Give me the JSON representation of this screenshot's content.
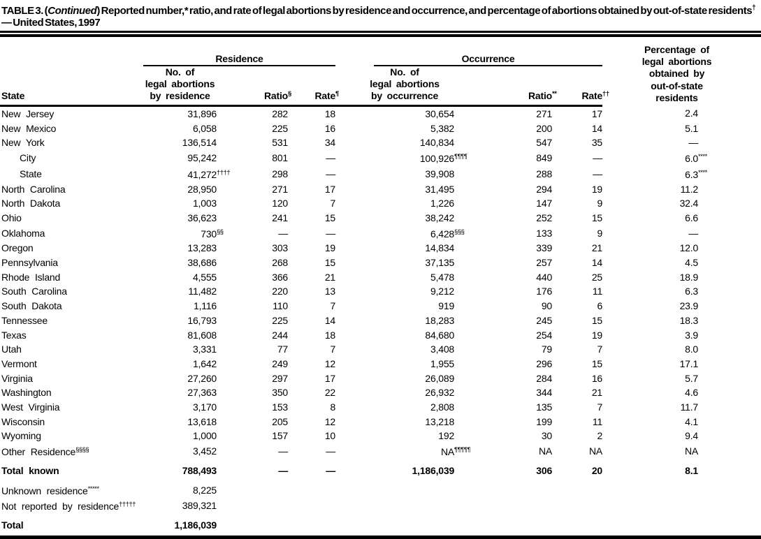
{
  "title": {
    "part1": "TABLE 3. (",
    "continued": "Continued",
    "part2": ") Reported number,* ratio, and rate of legal abortions by residence and occurrence, and percentage of abortions obtained by out-of-state residents",
    "dagger": "†",
    "part3": " — United States, 1997"
  },
  "header": {
    "state": "State",
    "residence_group": "Residence",
    "occurrence_group": "Occurrence",
    "res_no_line1": "No. of",
    "res_no_line2": "legal abortions",
    "res_no_line3": "by residence",
    "res_ratio": "Ratio",
    "res_ratio_sup": "§",
    "res_rate": "Rate",
    "res_rate_sup": "¶",
    "occ_no_line1": "No. of",
    "occ_no_line2": "legal abortions",
    "occ_no_line3": "by occurrence",
    "occ_ratio": "Ratio",
    "occ_ratio_sup": "**",
    "occ_rate": "Rate",
    "occ_rate_sup": "††",
    "pct_line1": "Percentage of",
    "pct_line2": "legal abortions",
    "pct_line3": "obtained by",
    "pct_line4": "out-of-state",
    "pct_line5": "residents"
  },
  "rows": [
    {
      "state": "New Jersey",
      "res_no": "31,896",
      "res_ratio": "282",
      "res_rate": "18",
      "occ_no": "30,654",
      "occ_ratio": "271",
      "occ_rate": "17",
      "pct": "2.4"
    },
    {
      "state": "New Mexico",
      "res_no": "6,058",
      "res_ratio": "225",
      "res_rate": "16",
      "occ_no": "5,382",
      "occ_ratio": "200",
      "occ_rate": "14",
      "pct": "5.1"
    },
    {
      "state": "New York",
      "res_no": "136,514",
      "res_ratio": "531",
      "res_rate": "34",
      "occ_no": "140,834",
      "occ_ratio": "547",
      "occ_rate": "35",
      "pct": "—"
    },
    {
      "state": "City",
      "indent": true,
      "res_no": "95,242",
      "res_ratio": "801",
      "res_rate": "—",
      "occ_no": "100,926",
      "occ_no_sup": "¶¶¶¶",
      "occ_ratio": "849",
      "occ_rate": "—",
      "pct": "6.0",
      "pct_sup": "****"
    },
    {
      "state": "State",
      "indent": true,
      "res_no": "41,272",
      "res_no_sup": "††††",
      "res_ratio": "298",
      "res_rate": "—",
      "occ_no": "39,908",
      "occ_ratio": "288",
      "occ_rate": "—",
      "pct": "6.3",
      "pct_sup": "****"
    },
    {
      "state": "North Carolina",
      "res_no": "28,950",
      "res_ratio": "271",
      "res_rate": "17",
      "occ_no": "31,495",
      "occ_ratio": "294",
      "occ_rate": "19",
      "pct": "11.2"
    },
    {
      "state": "North Dakota",
      "res_no": "1,003",
      "res_ratio": "120",
      "res_rate": "7",
      "occ_no": "1,226",
      "occ_ratio": "147",
      "occ_rate": "9",
      "pct": "32.4"
    },
    {
      "state": "Ohio",
      "res_no": "36,623",
      "res_ratio": "241",
      "res_rate": "15",
      "occ_no": "38,242",
      "occ_ratio": "252",
      "occ_rate": "15",
      "pct": "6.6"
    },
    {
      "state": "Oklahoma",
      "res_no": "730",
      "res_no_sup": "§§",
      "res_ratio": "—",
      "res_rate": "—",
      "occ_no": "6,428",
      "occ_no_sup": "§§§",
      "occ_ratio": "133",
      "occ_rate": "9",
      "pct": "—"
    },
    {
      "state": "Oregon",
      "res_no": "13,283",
      "res_ratio": "303",
      "res_rate": "19",
      "occ_no": "14,834",
      "occ_ratio": "339",
      "occ_rate": "21",
      "pct": "12.0"
    },
    {
      "state": "Pennsylvania",
      "res_no": "38,686",
      "res_ratio": "268",
      "res_rate": "15",
      "occ_no": "37,135",
      "occ_ratio": "257",
      "occ_rate": "14",
      "pct": "4.5"
    },
    {
      "state": "Rhode Island",
      "res_no": "4,555",
      "res_ratio": "366",
      "res_rate": "21",
      "occ_no": "5,478",
      "occ_ratio": "440",
      "occ_rate": "25",
      "pct": "18.9"
    },
    {
      "state": "South Carolina",
      "res_no": "11,482",
      "res_ratio": "220",
      "res_rate": "13",
      "occ_no": "9,212",
      "occ_ratio": "176",
      "occ_rate": "11",
      "pct": "6.3"
    },
    {
      "state": "South Dakota",
      "res_no": "1,116",
      "res_ratio": "110",
      "res_rate": "7",
      "occ_no": "919",
      "occ_ratio": "90",
      "occ_rate": "6",
      "pct": "23.9"
    },
    {
      "state": "Tennessee",
      "res_no": "16,793",
      "res_ratio": "225",
      "res_rate": "14",
      "occ_no": "18,283",
      "occ_ratio": "245",
      "occ_rate": "15",
      "pct": "18.3"
    },
    {
      "state": "Texas",
      "res_no": "81,608",
      "res_ratio": "244",
      "res_rate": "18",
      "occ_no": "84,680",
      "occ_ratio": "254",
      "occ_rate": "19",
      "pct": "3.9"
    },
    {
      "state": "Utah",
      "res_no": "3,331",
      "res_ratio": "77",
      "res_rate": "7",
      "occ_no": "3,408",
      "occ_ratio": "79",
      "occ_rate": "7",
      "pct": "8.0"
    },
    {
      "state": "Vermont",
      "res_no": "1,642",
      "res_ratio": "249",
      "res_rate": "12",
      "occ_no": "1,955",
      "occ_ratio": "296",
      "occ_rate": "15",
      "pct": "17.1"
    },
    {
      "state": "Virginia",
      "res_no": "27,260",
      "res_ratio": "297",
      "res_rate": "17",
      "occ_no": "26,089",
      "occ_ratio": "284",
      "occ_rate": "16",
      "pct": "5.7"
    },
    {
      "state": "Washington",
      "res_no": "27,363",
      "res_ratio": "350",
      "res_rate": "22",
      "occ_no": "26,932",
      "occ_ratio": "344",
      "occ_rate": "21",
      "pct": "4.6"
    },
    {
      "state": "West Virginia",
      "res_no": "3,170",
      "res_ratio": "153",
      "res_rate": "8",
      "occ_no": "2,808",
      "occ_ratio": "135",
      "occ_rate": "7",
      "pct": "11.7"
    },
    {
      "state": "Wisconsin",
      "res_no": "13,618",
      "res_ratio": "205",
      "res_rate": "12",
      "occ_no": "13,218",
      "occ_ratio": "199",
      "occ_rate": "11",
      "pct": "4.1"
    },
    {
      "state": "Wyoming",
      "res_no": "1,000",
      "res_ratio": "157",
      "res_rate": "10",
      "occ_no": "192",
      "occ_ratio": "30",
      "occ_rate": "2",
      "pct": "9.4"
    },
    {
      "state": "Other Residence",
      "state_sup": "§§§§",
      "res_no": "3,452",
      "res_ratio": "—",
      "res_rate": "—",
      "occ_no": "NA",
      "occ_no_sup": "¶¶¶¶¶",
      "occ_ratio": "NA",
      "occ_rate": "NA",
      "pct": "NA"
    },
    {
      "state": "Total known",
      "bold": true,
      "gap": true,
      "res_no": "788,493",
      "res_ratio": "—",
      "res_rate": "—",
      "occ_no": "1,186,039",
      "occ_ratio": "306",
      "occ_rate": "20",
      "pct": "8.1"
    },
    {
      "state": "Unknown residence",
      "state_sup": "*****",
      "gap": true,
      "res_no": "8,225",
      "res_ratio": "",
      "res_rate": "",
      "occ_no": "",
      "occ_ratio": "",
      "occ_rate": "",
      "pct": ""
    },
    {
      "state": "Not reported by residence",
      "state_sup": "†††††",
      "res_no": "389,321",
      "res_ratio": "",
      "res_rate": "",
      "occ_no": "",
      "occ_ratio": "",
      "occ_rate": "",
      "pct": ""
    },
    {
      "state": "Total",
      "bold": true,
      "gap": true,
      "res_no": "1,186,039",
      "res_ratio": "",
      "res_rate": "",
      "occ_no": "",
      "occ_ratio": "",
      "occ_rate": "",
      "pct": ""
    }
  ]
}
